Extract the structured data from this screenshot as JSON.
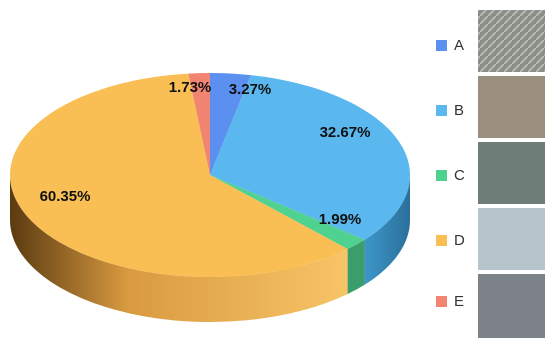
{
  "chart_data": {
    "type": "pie",
    "categories": [
      "A",
      "B",
      "C",
      "D",
      "E"
    ],
    "values": [
      3.27,
      32.67,
      1.99,
      60.35,
      1.73
    ],
    "value_labels": [
      "3.27%",
      "32.67%",
      "1.99%",
      "60.35%",
      "1.73%"
    ],
    "colors": [
      "#5b8ff0",
      "#5ab8ee",
      "#4fd18f",
      "#f9bf55",
      "#f28472"
    ]
  }
}
